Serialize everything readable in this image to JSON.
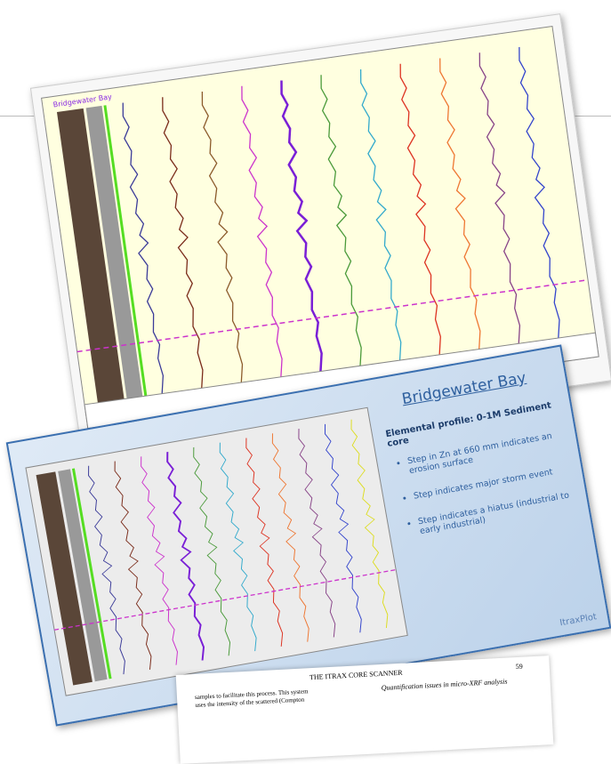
{
  "top_chart": {
    "title": "Bridgewater Bay"
  },
  "slide": {
    "title": "Bridgewater Bay",
    "subtitle": "Elemental profile: 0-1M Sediment core",
    "bullets": [
      "Step in Zn at 660 mm indicates an erosion surface",
      "Step indicates major storm event",
      "Step indicates a hiatus (industrial to early industrial)"
    ],
    "brand": "ItraxPlot"
  },
  "paper": {
    "header": "THE ITRAX CORE SCANNER",
    "page": "59",
    "left_lines": [
      "samples to facilitate this process. This system",
      "uses the intensity of the scattered (Compton"
    ],
    "right_heading": "Quantification issues in micro-XRF analysis"
  }
}
